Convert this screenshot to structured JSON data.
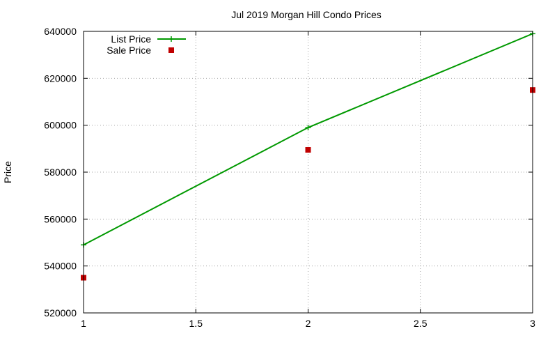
{
  "chart_data": {
    "type": "line",
    "title": "Jul 2019 Morgan Hill Condo Prices",
    "xlabel": "",
    "ylabel": "Price",
    "xlim": [
      1,
      3
    ],
    "ylim": [
      520000,
      640000
    ],
    "x_ticks": [
      "1",
      "1.5",
      "2",
      "2.5",
      "3"
    ],
    "y_ticks": [
      "520000",
      "540000",
      "560000",
      "580000",
      "600000",
      "620000",
      "640000"
    ],
    "grid": true,
    "legend_position": "top-left",
    "series": [
      {
        "name": "List Price",
        "style": "line-points",
        "color": "#009900",
        "marker": "plus",
        "x": [
          1,
          2,
          3
        ],
        "y": [
          549000,
          599000,
          639000
        ]
      },
      {
        "name": "Sale Price",
        "style": "points",
        "color": "#c00000",
        "marker": "square",
        "x": [
          1,
          2,
          3
        ],
        "y": [
          535000,
          589500,
          615000
        ]
      }
    ]
  }
}
